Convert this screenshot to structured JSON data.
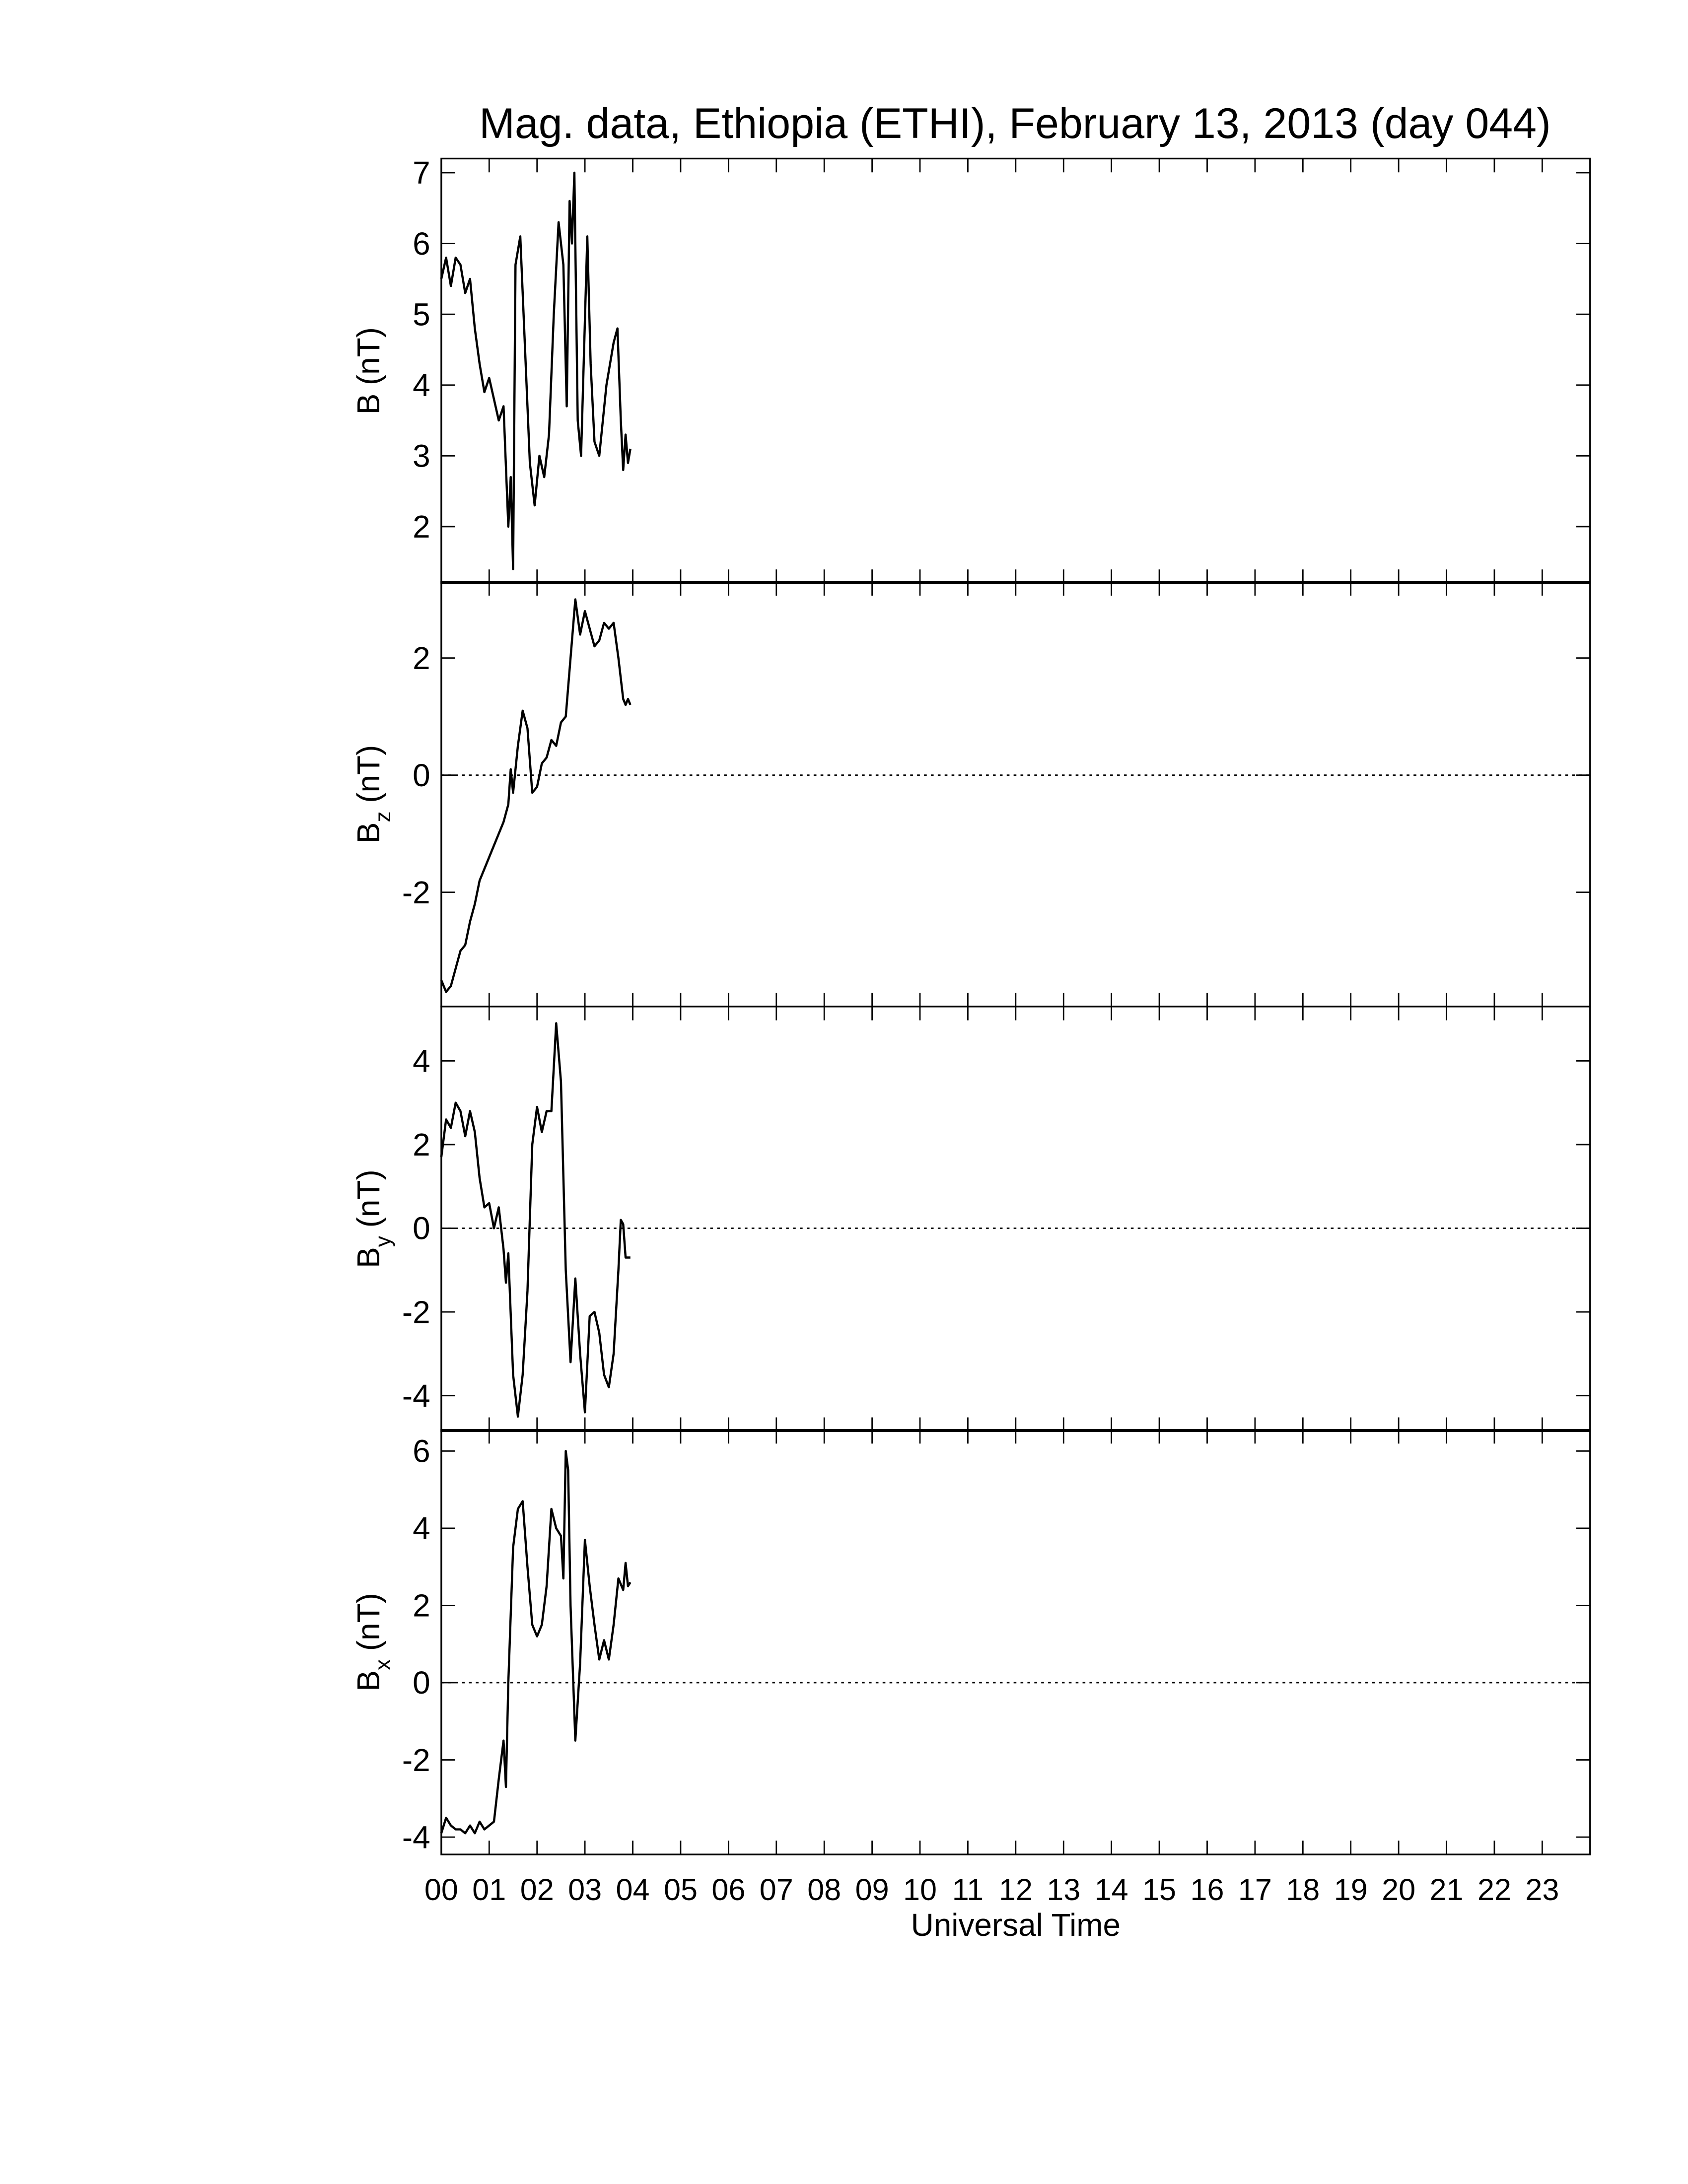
{
  "chart_data": [
    {
      "type": "line",
      "title": "Mag. data, Ethiopia (ETHI), February 13, 2013 (day 044)",
      "ylabel": {
        "base": "B",
        "unit": "(nT)"
      },
      "color": "#000000",
      "x": [
        0.0,
        0.1,
        0.2,
        0.3,
        0.4,
        0.5,
        0.6,
        0.7,
        0.8,
        0.9,
        1.0,
        1.1,
        1.2,
        1.3,
        1.4,
        1.45,
        1.5,
        1.55,
        1.65,
        1.75,
        1.85,
        1.95,
        2.05,
        2.15,
        2.25,
        2.35,
        2.45,
        2.55,
        2.62,
        2.68,
        2.73,
        2.78,
        2.85,
        2.92,
        3.05,
        3.12,
        3.2,
        3.3,
        3.45,
        3.6,
        3.68,
        3.75,
        3.8,
        3.85,
        3.9,
        3.95
      ],
      "values": [
        5.5,
        5.8,
        5.4,
        5.8,
        5.7,
        5.3,
        5.5,
        4.8,
        4.3,
        3.9,
        4.1,
        3.8,
        3.5,
        3.7,
        2.0,
        2.7,
        1.4,
        5.7,
        6.1,
        4.5,
        2.9,
        2.3,
        3.0,
        2.7,
        3.3,
        5.0,
        6.3,
        5.7,
        3.7,
        6.6,
        6.0,
        7.0,
        3.5,
        3.0,
        6.1,
        4.3,
        3.2,
        3.0,
        4.0,
        4.6,
        4.8,
        3.5,
        2.8,
        3.3,
        2.9,
        3.1
      ],
      "xlim": [
        0,
        24
      ],
      "xticks": [
        0,
        1,
        2,
        3,
        4,
        5,
        6,
        7,
        8,
        9,
        10,
        11,
        12,
        13,
        14,
        15,
        16,
        17,
        18,
        19,
        20,
        21,
        22,
        23
      ],
      "show_xtick_labels": false,
      "ylim": [
        1.2,
        7.2
      ],
      "yticks": [
        2,
        3,
        4,
        5,
        6,
        7
      ],
      "zero_line": false
    },
    {
      "type": "line",
      "ylabel": {
        "base": "B",
        "sub": "z",
        "unit": "(nT)"
      },
      "color": "#000000",
      "x": [
        0.0,
        0.1,
        0.2,
        0.3,
        0.4,
        0.5,
        0.6,
        0.7,
        0.8,
        0.9,
        1.0,
        1.1,
        1.2,
        1.3,
        1.4,
        1.45,
        1.5,
        1.6,
        1.7,
        1.8,
        1.9,
        2.0,
        2.1,
        2.2,
        2.3,
        2.4,
        2.5,
        2.6,
        2.7,
        2.8,
        2.9,
        3.0,
        3.1,
        3.2,
        3.3,
        3.4,
        3.5,
        3.6,
        3.7,
        3.8,
        3.85,
        3.9,
        3.95
      ],
      "values": [
        -3.5,
        -3.7,
        -3.6,
        -3.3,
        -3.0,
        -2.9,
        -2.5,
        -2.2,
        -1.8,
        -1.6,
        -1.4,
        -1.2,
        -1.0,
        -0.8,
        -0.5,
        0.1,
        -0.3,
        0.5,
        1.1,
        0.8,
        -0.3,
        -0.2,
        0.2,
        0.3,
        0.6,
        0.5,
        0.9,
        1.0,
        2.0,
        3.0,
        2.4,
        2.8,
        2.5,
        2.2,
        2.3,
        2.6,
        2.5,
        2.6,
        2.0,
        1.3,
        1.2,
        1.3,
        1.2
      ],
      "xlim": [
        0,
        24
      ],
      "xticks": [
        0,
        1,
        2,
        3,
        4,
        5,
        6,
        7,
        8,
        9,
        10,
        11,
        12,
        13,
        14,
        15,
        16,
        17,
        18,
        19,
        20,
        21,
        22,
        23
      ],
      "show_xtick_labels": false,
      "ylim": [
        -3.95,
        3.3
      ],
      "yticks": [
        -2,
        0,
        2
      ],
      "zero_line": true
    },
    {
      "type": "line",
      "ylabel": {
        "base": "B",
        "sub": "y",
        "unit": "(nT)"
      },
      "color": "#000000",
      "x": [
        0.0,
        0.1,
        0.2,
        0.3,
        0.4,
        0.5,
        0.6,
        0.7,
        0.8,
        0.9,
        1.0,
        1.1,
        1.2,
        1.3,
        1.35,
        1.4,
        1.5,
        1.6,
        1.7,
        1.8,
        1.9,
        2.0,
        2.1,
        2.2,
        2.3,
        2.4,
        2.5,
        2.6,
        2.7,
        2.8,
        2.9,
        3.0,
        3.1,
        3.2,
        3.3,
        3.4,
        3.5,
        3.6,
        3.7,
        3.75,
        3.8,
        3.85,
        3.95
      ],
      "values": [
        1.7,
        2.6,
        2.4,
        3.0,
        2.8,
        2.2,
        2.8,
        2.3,
        1.2,
        0.5,
        0.6,
        0.0,
        0.5,
        -0.5,
        -1.3,
        -0.6,
        -3.5,
        -4.5,
        -3.5,
        -1.5,
        2.0,
        2.9,
        2.3,
        2.8,
        2.8,
        4.9,
        3.5,
        -1.0,
        -3.2,
        -1.2,
        -3.0,
        -4.4,
        -2.1,
        -2.0,
        -2.5,
        -3.5,
        -3.8,
        -3.0,
        -1.0,
        0.2,
        0.1,
        -0.7,
        -0.7
      ],
      "xlim": [
        0,
        24
      ],
      "xticks": [
        0,
        1,
        2,
        3,
        4,
        5,
        6,
        7,
        8,
        9,
        10,
        11,
        12,
        13,
        14,
        15,
        16,
        17,
        18,
        19,
        20,
        21,
        22,
        23
      ],
      "show_xtick_labels": false,
      "ylim": [
        -4.85,
        5.3
      ],
      "yticks": [
        -4,
        -2,
        0,
        2,
        4
      ],
      "zero_line": true
    },
    {
      "type": "line",
      "ylabel": {
        "base": "B",
        "sub": "x",
        "unit": "(nT)"
      },
      "xlabel": "Universal Time",
      "color": "#000000",
      "x": [
        0.0,
        0.1,
        0.2,
        0.3,
        0.4,
        0.5,
        0.6,
        0.7,
        0.8,
        0.9,
        1.0,
        1.1,
        1.2,
        1.3,
        1.35,
        1.4,
        1.5,
        1.6,
        1.7,
        1.8,
        1.9,
        2.0,
        2.1,
        2.2,
        2.3,
        2.4,
        2.5,
        2.55,
        2.6,
        2.65,
        2.7,
        2.8,
        2.9,
        3.0,
        3.1,
        3.2,
        3.3,
        3.4,
        3.5,
        3.6,
        3.7,
        3.8,
        3.85,
        3.9,
        3.95
      ],
      "values": [
        -3.9,
        -3.5,
        -3.7,
        -3.8,
        -3.8,
        -3.9,
        -3.7,
        -3.9,
        -3.6,
        -3.8,
        -3.7,
        -3.6,
        -2.5,
        -1.5,
        -2.7,
        0.0,
        3.5,
        4.5,
        4.7,
        3.0,
        1.5,
        1.2,
        1.5,
        2.5,
        4.5,
        4.0,
        3.8,
        2.7,
        6.0,
        5.5,
        2.0,
        -1.5,
        0.5,
        3.7,
        2.5,
        1.5,
        0.6,
        1.1,
        0.6,
        1.5,
        2.7,
        2.4,
        3.1,
        2.5,
        2.6
      ],
      "xlim": [
        0,
        24
      ],
      "xticks": [
        {
          "value": 0,
          "label": "00"
        },
        {
          "value": 1,
          "label": "01"
        },
        {
          "value": 2,
          "label": "02"
        },
        {
          "value": 3,
          "label": "03"
        },
        {
          "value": 4,
          "label": "04"
        },
        {
          "value": 5,
          "label": "05"
        },
        {
          "value": 6,
          "label": "06"
        },
        {
          "value": 7,
          "label": "07"
        },
        {
          "value": 8,
          "label": "08"
        },
        {
          "value": 9,
          "label": "09"
        },
        {
          "value": 10,
          "label": "10"
        },
        {
          "value": 11,
          "label": "11"
        },
        {
          "value": 12,
          "label": "12"
        },
        {
          "value": 13,
          "label": "13"
        },
        {
          "value": 14,
          "label": "14"
        },
        {
          "value": 15,
          "label": "15"
        },
        {
          "value": 16,
          "label": "16"
        },
        {
          "value": 17,
          "label": "17"
        },
        {
          "value": 18,
          "label": "18"
        },
        {
          "value": 19,
          "label": "19"
        },
        {
          "value": 20,
          "label": "20"
        },
        {
          "value": 21,
          "label": "21"
        },
        {
          "value": 22,
          "label": "22"
        },
        {
          "value": 23,
          "label": "23"
        }
      ],
      "show_xtick_labels": true,
      "ylim": [
        -4.45,
        6.55
      ],
      "yticks": [
        -4,
        -2,
        0,
        2,
        4,
        6
      ],
      "zero_line": true
    }
  ]
}
